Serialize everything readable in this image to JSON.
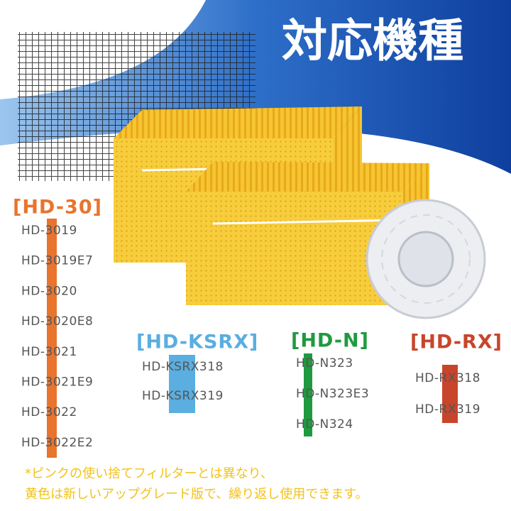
{
  "title": "対応機種",
  "groups": [
    {
      "label": "[HD-30]",
      "models": [
        "HD-3019",
        "HD-3019E7",
        "HD-3020",
        "HD-3020E8",
        "HD-3021",
        "HD-3021E9",
        "HD-3022",
        "HD-3022E2"
      ]
    },
    {
      "label": "[HD-KSRX]",
      "models": [
        "HD-KSRX318",
        "HD-KSRX319"
      ]
    },
    {
      "label": "[HD-N]",
      "models": [
        "HD-N323",
        "HD-N323E3",
        "HD-N324"
      ]
    },
    {
      "label": "[HD-RX]",
      "models": [
        "HD-RX318",
        "HD-RX319"
      ]
    }
  ],
  "note": [
    "*ピンクの使い捨てフィルターとは異なり、",
    "黄色は新しいアップグレード版で、繰り返し使用できます。"
  ]
}
